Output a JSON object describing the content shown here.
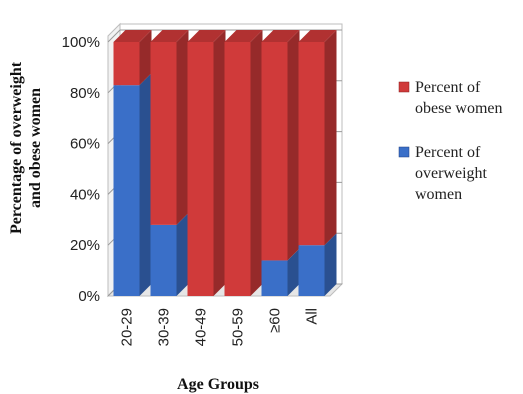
{
  "chart_data": {
    "type": "bar",
    "stacked": true,
    "percent_stacked": true,
    "three_d": true,
    "categories": [
      "20-29",
      "30-39",
      "40-49",
      "50-59",
      "≥60",
      "All"
    ],
    "series": [
      {
        "name": "Percent of overweight women",
        "values": [
          83,
          28,
          0,
          0,
          14,
          20
        ],
        "color": "#3a6fc8"
      },
      {
        "name": "Percent of obese women",
        "values": [
          17,
          72,
          100,
          100,
          86,
          80
        ],
        "color": "#d03a3a"
      }
    ],
    "legend_lines": [
      [
        "Percent of",
        "obese women"
      ],
      [
        "Percent of",
        "overweight",
        "women"
      ]
    ],
    "xlabel": "Age Groups",
    "ylabel_lines": [
      "Percentage of overweight",
      "and obese women"
    ],
    "yticks": [
      "0%",
      "20%",
      "40%",
      "60%",
      "80%",
      "100%"
    ],
    "ylim": [
      0,
      100
    ],
    "grid": true,
    "legend_position": "right"
  }
}
